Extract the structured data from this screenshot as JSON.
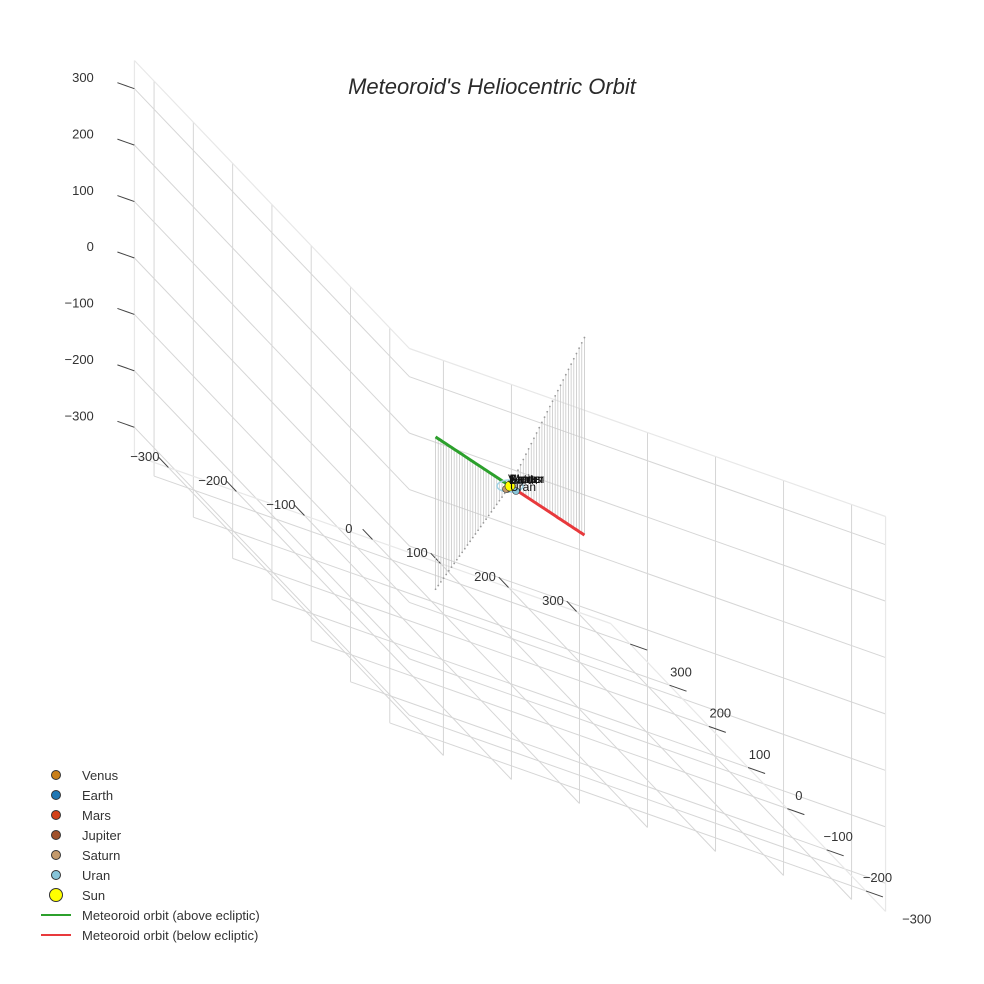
{
  "chart_data": {
    "type": "scatter3d",
    "title": "Meteoroid's Heliocentric Orbit",
    "axes": {
      "x": {
        "range": [
          -350,
          350
        ],
        "ticks": [
          -300,
          -200,
          -100,
          0,
          100,
          200,
          300
        ],
        "tick_labels": [
          "−300",
          "−200",
          "−100",
          "0",
          "100",
          "200",
          "300"
        ]
      },
      "y": {
        "range": [
          -350,
          350
        ],
        "ticks": [
          -300,
          -200,
          -100,
          0,
          100,
          200,
          300
        ],
        "tick_labels": [
          "−300",
          "−200",
          "−100",
          "0",
          "100",
          "200",
          "300"
        ]
      },
      "z": {
        "range": [
          -350,
          350
        ],
        "ticks": [
          -300,
          -200,
          -100,
          0,
          100,
          200,
          300
        ],
        "tick_labels": [
          "−300",
          "−200",
          "−100",
          "0",
          "100",
          "200",
          "300"
        ]
      }
    },
    "grid": true,
    "legend_position": "bottom-left",
    "series": [
      {
        "name": "Venus",
        "type": "marker",
        "color": "#c97f1a",
        "size": 8,
        "position": [
          0,
          0,
          0
        ]
      },
      {
        "name": "Earth",
        "type": "marker",
        "color": "#1f77b4",
        "size": 8,
        "position": [
          1,
          0,
          0
        ]
      },
      {
        "name": "Mars",
        "type": "marker",
        "color": "#d2421a",
        "size": 8,
        "position": [
          1.5,
          0,
          0
        ]
      },
      {
        "name": "Jupiter",
        "type": "marker",
        "color": "#a0522d",
        "size": 8,
        "position": [
          5,
          0,
          0
        ]
      },
      {
        "name": "Saturn",
        "type": "marker",
        "color": "#c49a6c",
        "size": 8,
        "position": [
          9.5,
          0,
          0
        ]
      },
      {
        "name": "Uran",
        "type": "marker",
        "color": "#87c5da",
        "size": 8,
        "position": [
          19,
          0,
          0
        ]
      },
      {
        "name": "Sun",
        "type": "marker",
        "color": "#ffff00",
        "size": 12,
        "position": [
          0,
          0,
          0
        ]
      },
      {
        "name": "Meteoroid orbit (above ecliptic)",
        "type": "line",
        "color": "#2ca02c",
        "points": [
          [
            -300,
            -330,
            200
          ],
          [
            -150,
            -165,
            100
          ],
          [
            0,
            0,
            0
          ]
        ]
      },
      {
        "name": "Meteoroid orbit (below ecliptic)",
        "type": "line",
        "color": "#e8393c",
        "points": [
          [
            0,
            0,
            0
          ],
          [
            150,
            165,
            -100
          ],
          [
            300,
            330,
            -200
          ]
        ]
      }
    ]
  },
  "legend": {
    "items": [
      {
        "label": "Venus",
        "kind": "dot",
        "color": "#c97f1a"
      },
      {
        "label": "Earth",
        "kind": "dot",
        "color": "#1f77b4"
      },
      {
        "label": "Mars",
        "kind": "dot",
        "color": "#d2421a"
      },
      {
        "label": "Jupiter",
        "kind": "dot",
        "color": "#a0522d"
      },
      {
        "label": "Saturn",
        "kind": "dot",
        "color": "#c49a6c"
      },
      {
        "label": "Uran",
        "kind": "dot",
        "color": "#87c5da"
      },
      {
        "label": "Sun",
        "kind": "bigdot",
        "color": "#ffff00"
      },
      {
        "label": "Meteoroid orbit (above ecliptic)",
        "kind": "line",
        "color": "#2ca02c"
      },
      {
        "label": "Meteoroid orbit (below ecliptic)",
        "kind": "line",
        "color": "#e8393c"
      }
    ]
  },
  "planet_labels": [
    "Venus",
    "Earth",
    "Mars",
    "Jupiter",
    "Saturn",
    "Uran"
  ]
}
